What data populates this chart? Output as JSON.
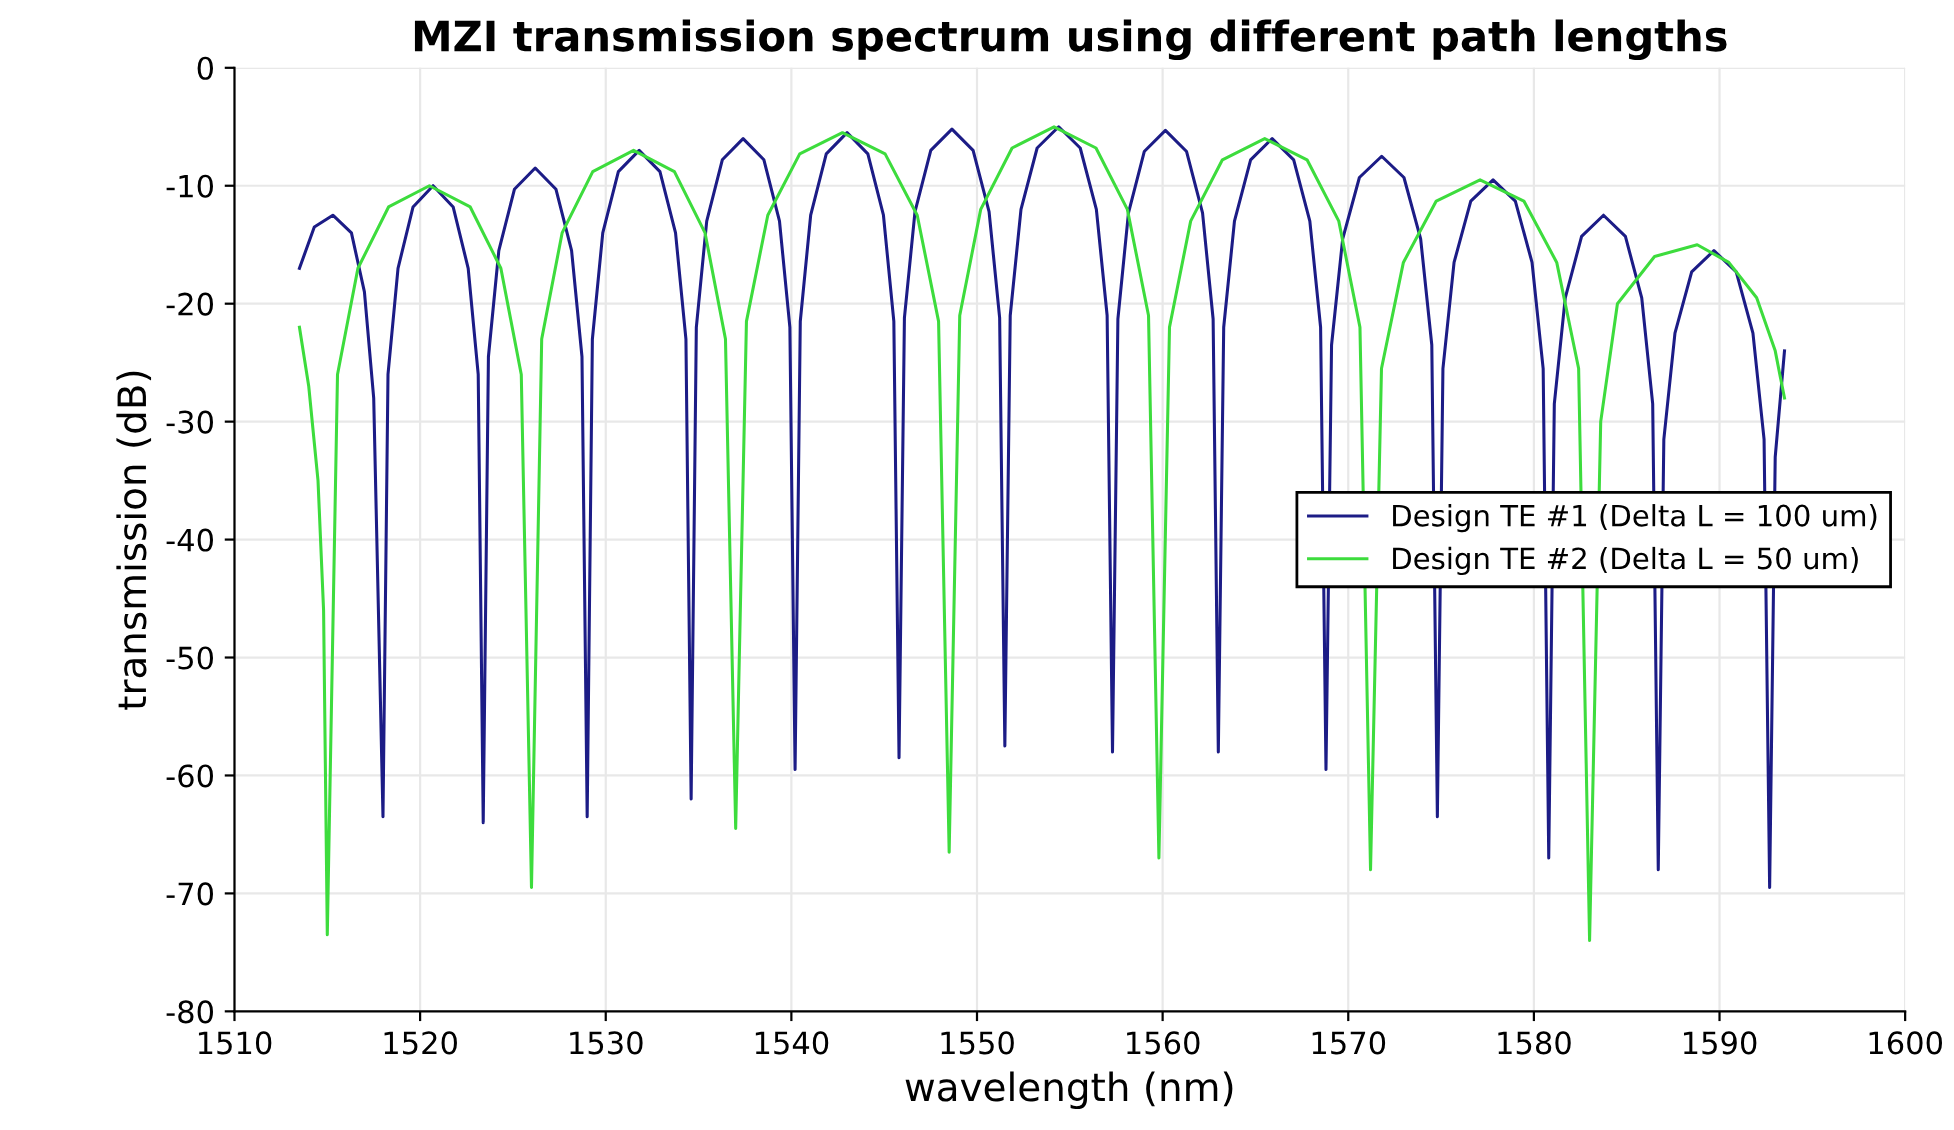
{
  "chart_data": {
    "type": "line",
    "title": "MZI transmission spectrum using different path lengths",
    "xlabel": "wavelength (nm)",
    "ylabel": "transmission (dB)",
    "xlim": [
      1510,
      1600
    ],
    "xticks": [
      1510,
      1520,
      1530,
      1540,
      1550,
      1560,
      1570,
      1580,
      1590,
      1600
    ],
    "ylim": [
      -80,
      0
    ],
    "yticks": [
      -80,
      -70,
      -60,
      -50,
      -40,
      -30,
      -20,
      -10,
      0
    ],
    "grid": true,
    "legend": "right",
    "marker": "none",
    "line_style": "solid",
    "series": [
      {
        "name": "Design TE #1 (Delta L = 100 um)",
        "color": "#1c1c86",
        "x": [
          1513.5,
          1514.3,
          1515.3,
          1516.3,
          1517.0,
          1517.5,
          1518.0,
          1518.27,
          1518.81,
          1519.62,
          1520.7,
          1521.78,
          1522.59,
          1523.13,
          1523.4,
          1523.68,
          1524.24,
          1525.08,
          1526.2,
          1527.32,
          1528.16,
          1528.72,
          1529.0,
          1529.28,
          1529.84,
          1530.68,
          1531.8,
          1532.92,
          1533.76,
          1534.32,
          1534.6,
          1534.88,
          1535.44,
          1536.28,
          1537.4,
          1538.52,
          1539.36,
          1539.92,
          1540.2,
          1540.48,
          1541.04,
          1541.88,
          1543.0,
          1544.12,
          1544.96,
          1545.52,
          1545.8,
          1546.09,
          1546.66,
          1547.51,
          1548.65,
          1549.79,
          1550.65,
          1551.22,
          1551.5,
          1551.79,
          1552.37,
          1553.24,
          1554.4,
          1555.56,
          1556.43,
          1557.01,
          1557.3,
          1557.59,
          1558.16,
          1559.01,
          1560.15,
          1561.29,
          1562.15,
          1562.72,
          1563.0,
          1563.29,
          1563.87,
          1564.74,
          1565.9,
          1567.06,
          1567.93,
          1568.51,
          1568.8,
          1569.1,
          1569.7,
          1570.6,
          1571.8,
          1573.0,
          1573.9,
          1574.5,
          1574.8,
          1575.1,
          1575.7,
          1576.6,
          1577.8,
          1579.0,
          1579.9,
          1580.5,
          1580.8,
          1581.1,
          1581.69,
          1582.57,
          1583.75,
          1584.93,
          1585.81,
          1586.4,
          1586.7,
          1587.0,
          1587.6,
          1588.5,
          1589.7,
          1590.9,
          1591.8,
          1592.4,
          1592.7,
          1593.0,
          1593.5
        ],
        "values": [
          -17,
          -13.5,
          -12.5,
          -14,
          -19,
          -28,
          -63.5,
          -26,
          -17,
          -11.8,
          -10,
          -11.8,
          -17,
          -26,
          -64,
          -24.5,
          -15.5,
          -10.3,
          -8.5,
          -10.3,
          -15.5,
          -24.5,
          -63.5,
          -23,
          -14,
          -8.8,
          -7,
          -8.8,
          -14,
          -23,
          -62,
          -22,
          -13,
          -7.8,
          -6,
          -7.8,
          -13,
          -22,
          -59.5,
          -21.5,
          -12.5,
          -7.3,
          -5.5,
          -7.3,
          -12.5,
          -21.5,
          -58.5,
          -21.2,
          -12.2,
          -7,
          -5.2,
          -7,
          -12.2,
          -21.2,
          -57.5,
          -21,
          -12,
          -6.8,
          -5,
          -6.8,
          -12,
          -21,
          -58,
          -21.3,
          -12.3,
          -7.1,
          -5.3,
          -7.1,
          -12.3,
          -21.3,
          -58,
          -22,
          -13,
          -7.8,
          -6,
          -7.8,
          -13,
          -22,
          -59.5,
          -23.5,
          -14.5,
          -9.3,
          -7.5,
          -9.3,
          -14.5,
          -23.5,
          -63.5,
          -25.5,
          -16.5,
          -11.3,
          -9.5,
          -11.3,
          -16.5,
          -25.5,
          -67,
          -28.5,
          -19.5,
          -14.3,
          -12.5,
          -14.3,
          -19.5,
          -28.5,
          -68,
          -31.5,
          -22.5,
          -17.3,
          -15.5,
          -17.3,
          -22.5,
          -31.5,
          -69.5,
          -33,
          -24
        ]
      },
      {
        "name": "Design TE #2 (Delta L = 50 um)",
        "color": "#3ddc3d",
        "x": [
          1513.5,
          1514.0,
          1514.5,
          1514.8,
          1515.0,
          1515.55,
          1516.65,
          1518.3,
          1520.5,
          1522.7,
          1524.35,
          1525.45,
          1526.0,
          1526.55,
          1527.65,
          1529.3,
          1531.5,
          1533.7,
          1535.35,
          1536.45,
          1537.0,
          1537.58,
          1538.73,
          1540.45,
          1542.75,
          1545.05,
          1546.78,
          1547.93,
          1548.5,
          1549.07,
          1550.2,
          1551.89,
          1554.15,
          1556.41,
          1558.1,
          1559.24,
          1559.8,
          1560.37,
          1561.51,
          1563.22,
          1565.5,
          1567.78,
          1569.49,
          1570.63,
          1571.2,
          1571.79,
          1572.97,
          1574.74,
          1577.1,
          1579.46,
          1581.23,
          1582.41,
          1583.0,
          1583.6,
          1584.5,
          1586.5,
          1588.8,
          1590.5,
          1592.0,
          1593.0,
          1593.5
        ],
        "values": [
          -22,
          -27,
          -35,
          -46,
          -73.5,
          -26,
          -17,
          -11.8,
          -10,
          -11.8,
          -17,
          -26,
          -69.5,
          -23,
          -14,
          -8.8,
          -7,
          -8.8,
          -14,
          -23,
          -64.5,
          -21.5,
          -12.5,
          -7.3,
          -5.5,
          -7.3,
          -12.5,
          -21.5,
          -66.5,
          -21,
          -12,
          -6.8,
          -5,
          -6.8,
          -12,
          -21,
          -67,
          -22,
          -13,
          -7.8,
          -6,
          -7.8,
          -13,
          -22,
          -68,
          -25.5,
          -16.5,
          -11.3,
          -9.5,
          -11.3,
          -16.5,
          -25.5,
          -74,
          -30,
          -20,
          -16,
          -15,
          -16.5,
          -19.5,
          -24,
          -28
        ]
      }
    ]
  }
}
